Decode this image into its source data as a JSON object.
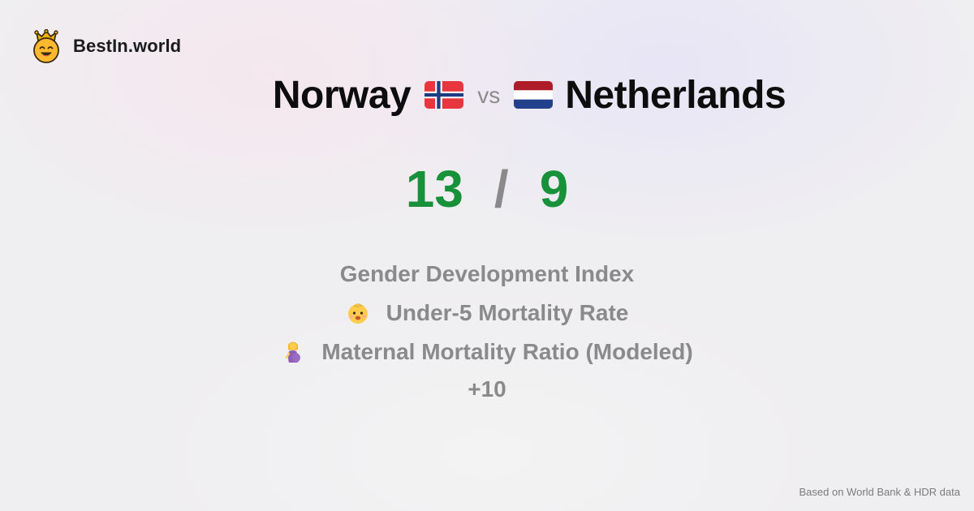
{
  "brand": {
    "logo_icon": "crowned-smiley-icon",
    "name": "BestIn.world"
  },
  "comparison": {
    "left": {
      "name": "Norway",
      "flag_icon": "norway-flag-icon"
    },
    "separator": "vs",
    "right": {
      "name": "Netherlands",
      "flag_icon": "netherlands-flag-icon"
    }
  },
  "score": {
    "left": "13",
    "separator": "/",
    "right": "9",
    "color": "#17923b"
  },
  "metrics": [
    {
      "label": "Gender Development Index",
      "icon": ""
    },
    {
      "label": "Under-5 Mortality Rate",
      "icon": "baby-icon"
    },
    {
      "label": "Maternal Mortality Ratio (Modeled)",
      "icon": "pregnant-woman-icon"
    }
  ],
  "more": "+10",
  "footer": "Based on World Bank & HDR data"
}
